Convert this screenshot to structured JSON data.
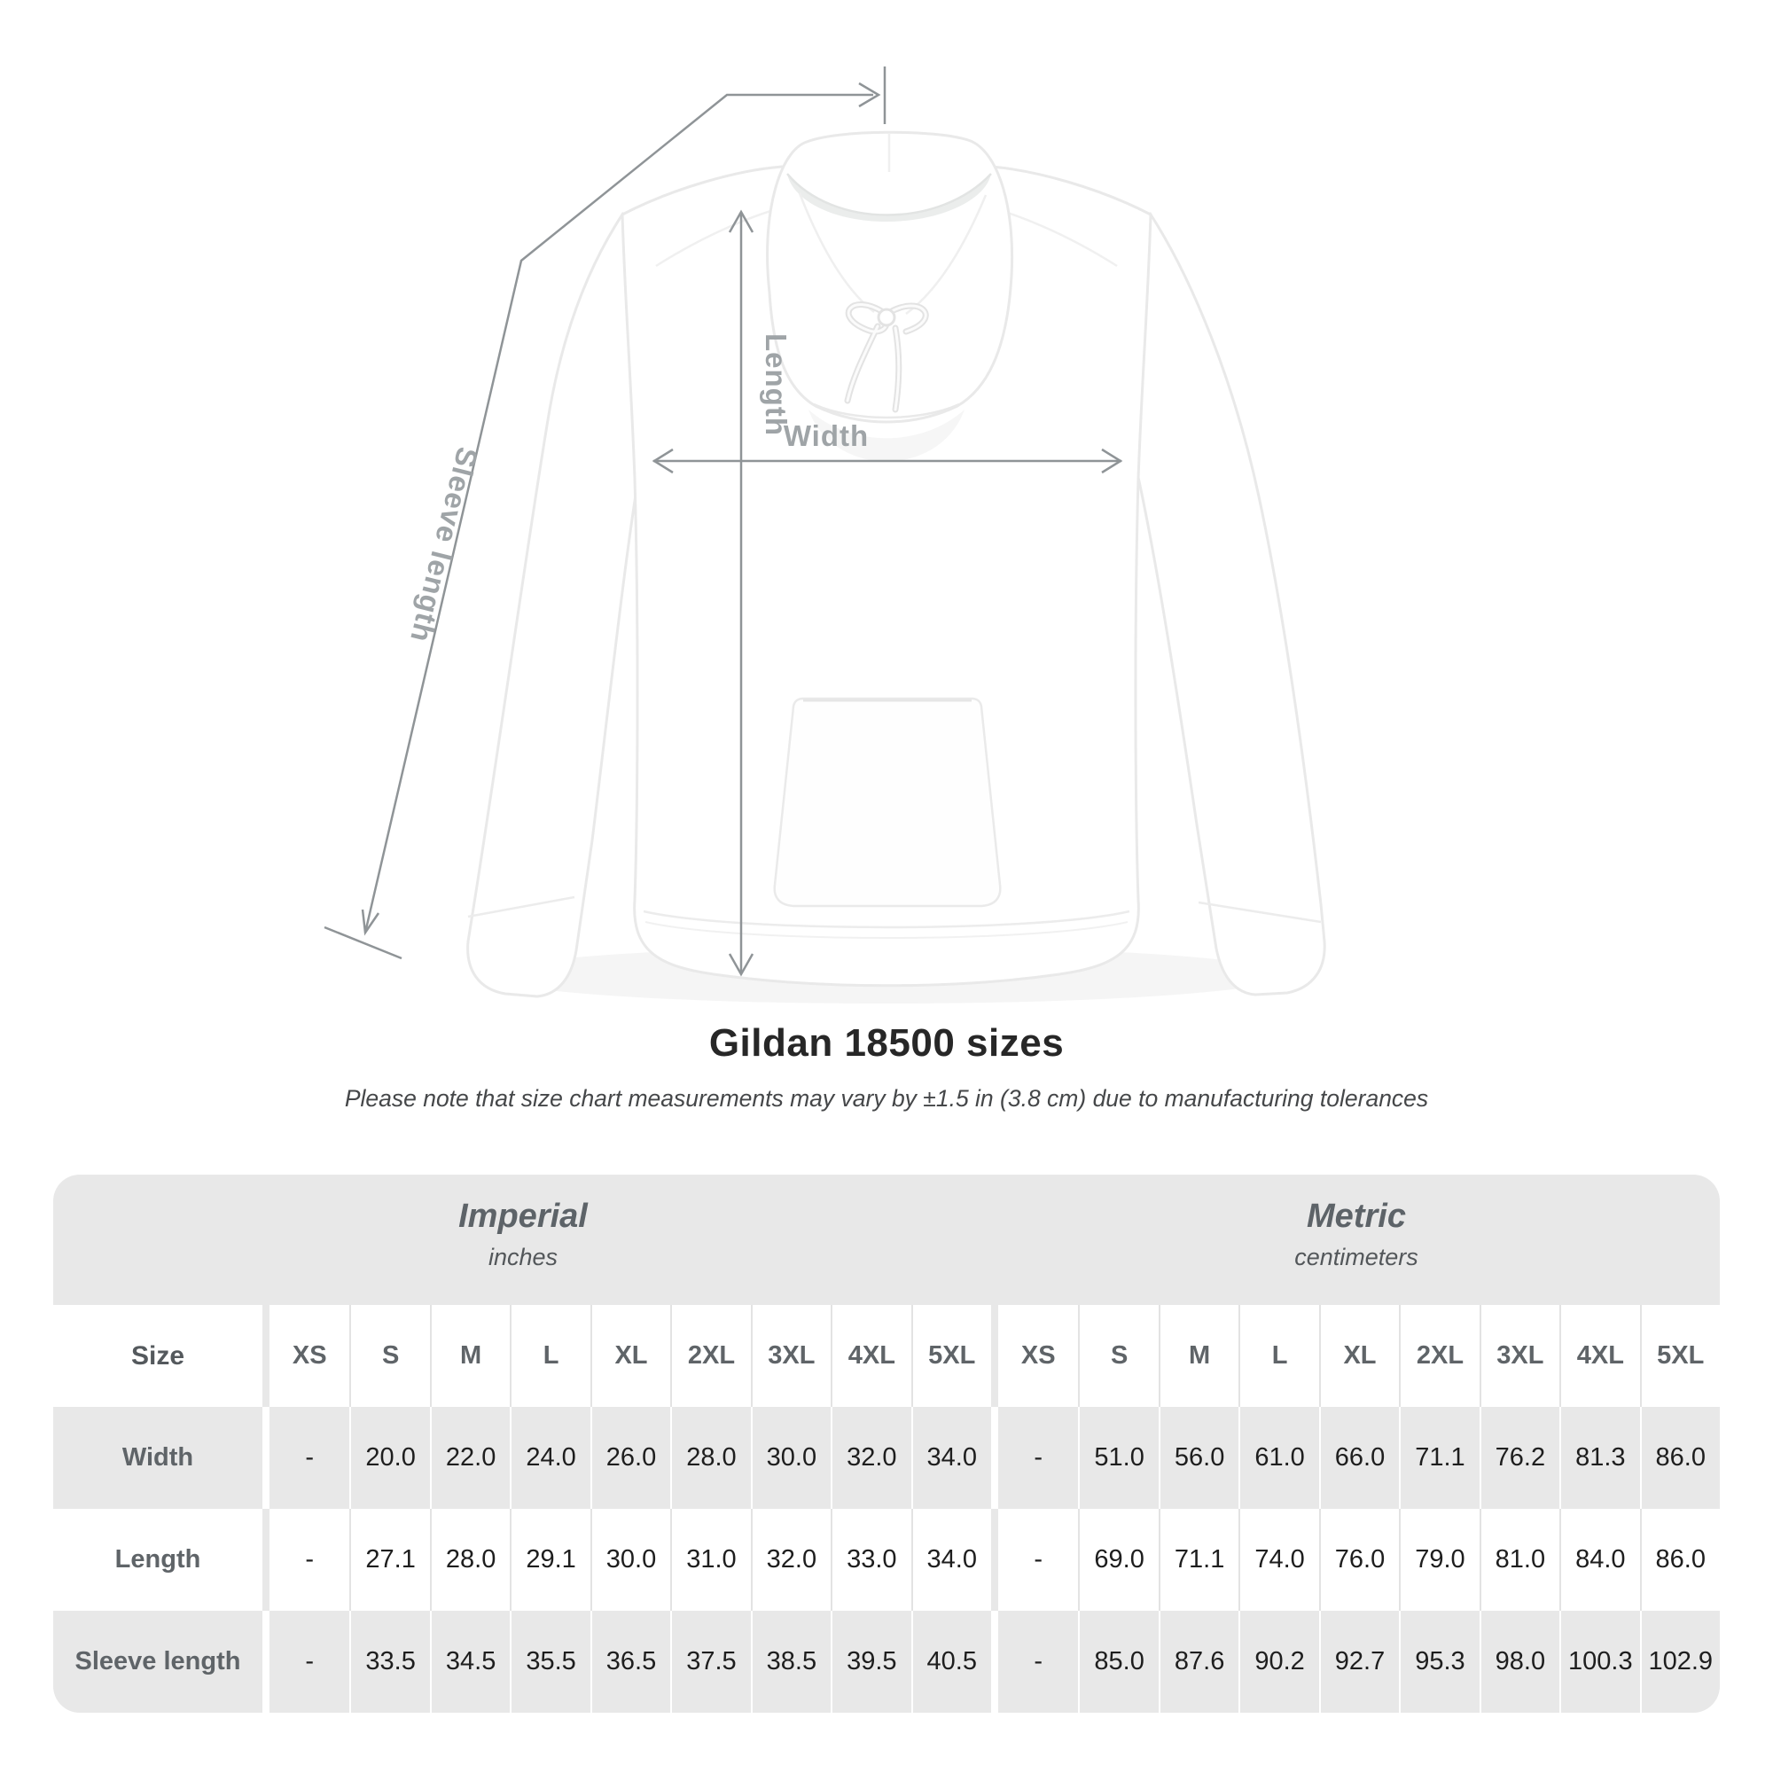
{
  "hero": {
    "dimension_labels": {
      "length": "Length",
      "width": "Width",
      "sleeve": "Sleeve length"
    }
  },
  "title": "Gildan 18500 sizes",
  "subtitle": "Please note that size chart measurements may vary by ±1.5 in (3.8 cm) due to manufacturing tolerances",
  "chart_data": {
    "type": "table",
    "title": "Gildan 18500 sizes",
    "note": "Please note that size chart measurements may vary by ±1.5 in (3.8 cm) due to manufacturing tolerances",
    "sections": [
      {
        "label": "Imperial",
        "unit": "inches"
      },
      {
        "label": "Metric",
        "unit": "centimeters"
      }
    ],
    "size_column_header": "Size",
    "sizes": [
      "XS",
      "S",
      "M",
      "L",
      "XL",
      "2XL",
      "3XL",
      "4XL",
      "5XL"
    ],
    "empty_value": "-",
    "rows": [
      {
        "label": "Width",
        "imperial": [
          "-",
          "20.0",
          "22.0",
          "24.0",
          "26.0",
          "28.0",
          "30.0",
          "32.0",
          "34.0"
        ],
        "metric": [
          "-",
          "51.0",
          "56.0",
          "61.0",
          "66.0",
          "71.1",
          "76.2",
          "81.3",
          "86.0"
        ]
      },
      {
        "label": "Length",
        "imperial": [
          "-",
          "27.1",
          "28.0",
          "29.1",
          "30.0",
          "31.0",
          "32.0",
          "33.0",
          "34.0"
        ],
        "metric": [
          "-",
          "69.0",
          "71.1",
          "74.0",
          "76.0",
          "79.0",
          "81.0",
          "84.0",
          "86.0"
        ]
      },
      {
        "label": "Sleeve length",
        "imperial": [
          "-",
          "33.5",
          "34.5",
          "35.5",
          "36.5",
          "37.5",
          "38.5",
          "39.5",
          "40.5"
        ],
        "metric": [
          "-",
          "85.0",
          "87.6",
          "90.2",
          "92.7",
          "95.3",
          "98.0",
          "100.3",
          "102.9"
        ]
      }
    ]
  },
  "colors": {
    "table_band_gray": "#e8e8e8",
    "value_text": "#1e1e1e",
    "muted_label": "#5f6468",
    "annotation_line": "#8f9497",
    "annotation_label": "#9fa4a7",
    "garment": "#ffffff"
  }
}
